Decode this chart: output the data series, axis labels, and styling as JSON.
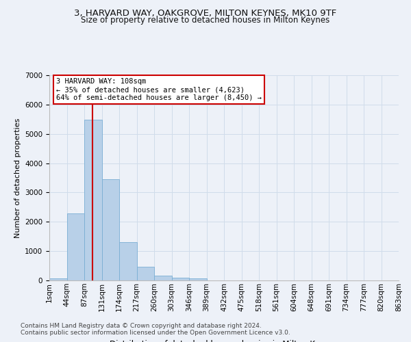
{
  "title1": "3, HARVARD WAY, OAKGROVE, MILTON KEYNES, MK10 9TF",
  "title2": "Size of property relative to detached houses in Milton Keynes",
  "xlabel": "Distribution of detached houses by size in Milton Keynes",
  "ylabel": "Number of detached properties",
  "bin_labels": [
    "1sqm",
    "44sqm",
    "87sqm",
    "131sqm",
    "174sqm",
    "217sqm",
    "260sqm",
    "303sqm",
    "346sqm",
    "389sqm",
    "432sqm",
    "475sqm",
    "518sqm",
    "561sqm",
    "604sqm",
    "648sqm",
    "691sqm",
    "734sqm",
    "777sqm",
    "820sqm",
    "863sqm"
  ],
  "bar_values": [
    80,
    2280,
    5480,
    3450,
    1310,
    470,
    160,
    100,
    60,
    0,
    0,
    0,
    0,
    0,
    0,
    0,
    0,
    0,
    0,
    0
  ],
  "bar_color": "#b8d0e8",
  "bar_edge_color": "#7aaed4",
  "grid_color": "#d0dcea",
  "background_color": "#edf1f8",
  "vline_color": "#cc0000",
  "annotation_text": "3 HARVARD WAY: 108sqm\n← 35% of detached houses are smaller (4,623)\n64% of semi-detached houses are larger (8,450) →",
  "annotation_box_facecolor": "#ffffff",
  "annotation_box_edgecolor": "#cc0000",
  "ylim": [
    0,
    7000
  ],
  "yticks": [
    0,
    1000,
    2000,
    3000,
    4000,
    5000,
    6000,
    7000
  ],
  "footnote1": "Contains HM Land Registry data © Crown copyright and database right 2024.",
  "footnote2": "Contains public sector information licensed under the Open Government Licence v3.0.",
  "title1_fontsize": 9.5,
  "title2_fontsize": 8.5,
  "xlabel_fontsize": 8.5,
  "ylabel_fontsize": 8,
  "tick_fontsize": 7.5,
  "annotation_fontsize": 7.5,
  "footnote_fontsize": 6.5
}
